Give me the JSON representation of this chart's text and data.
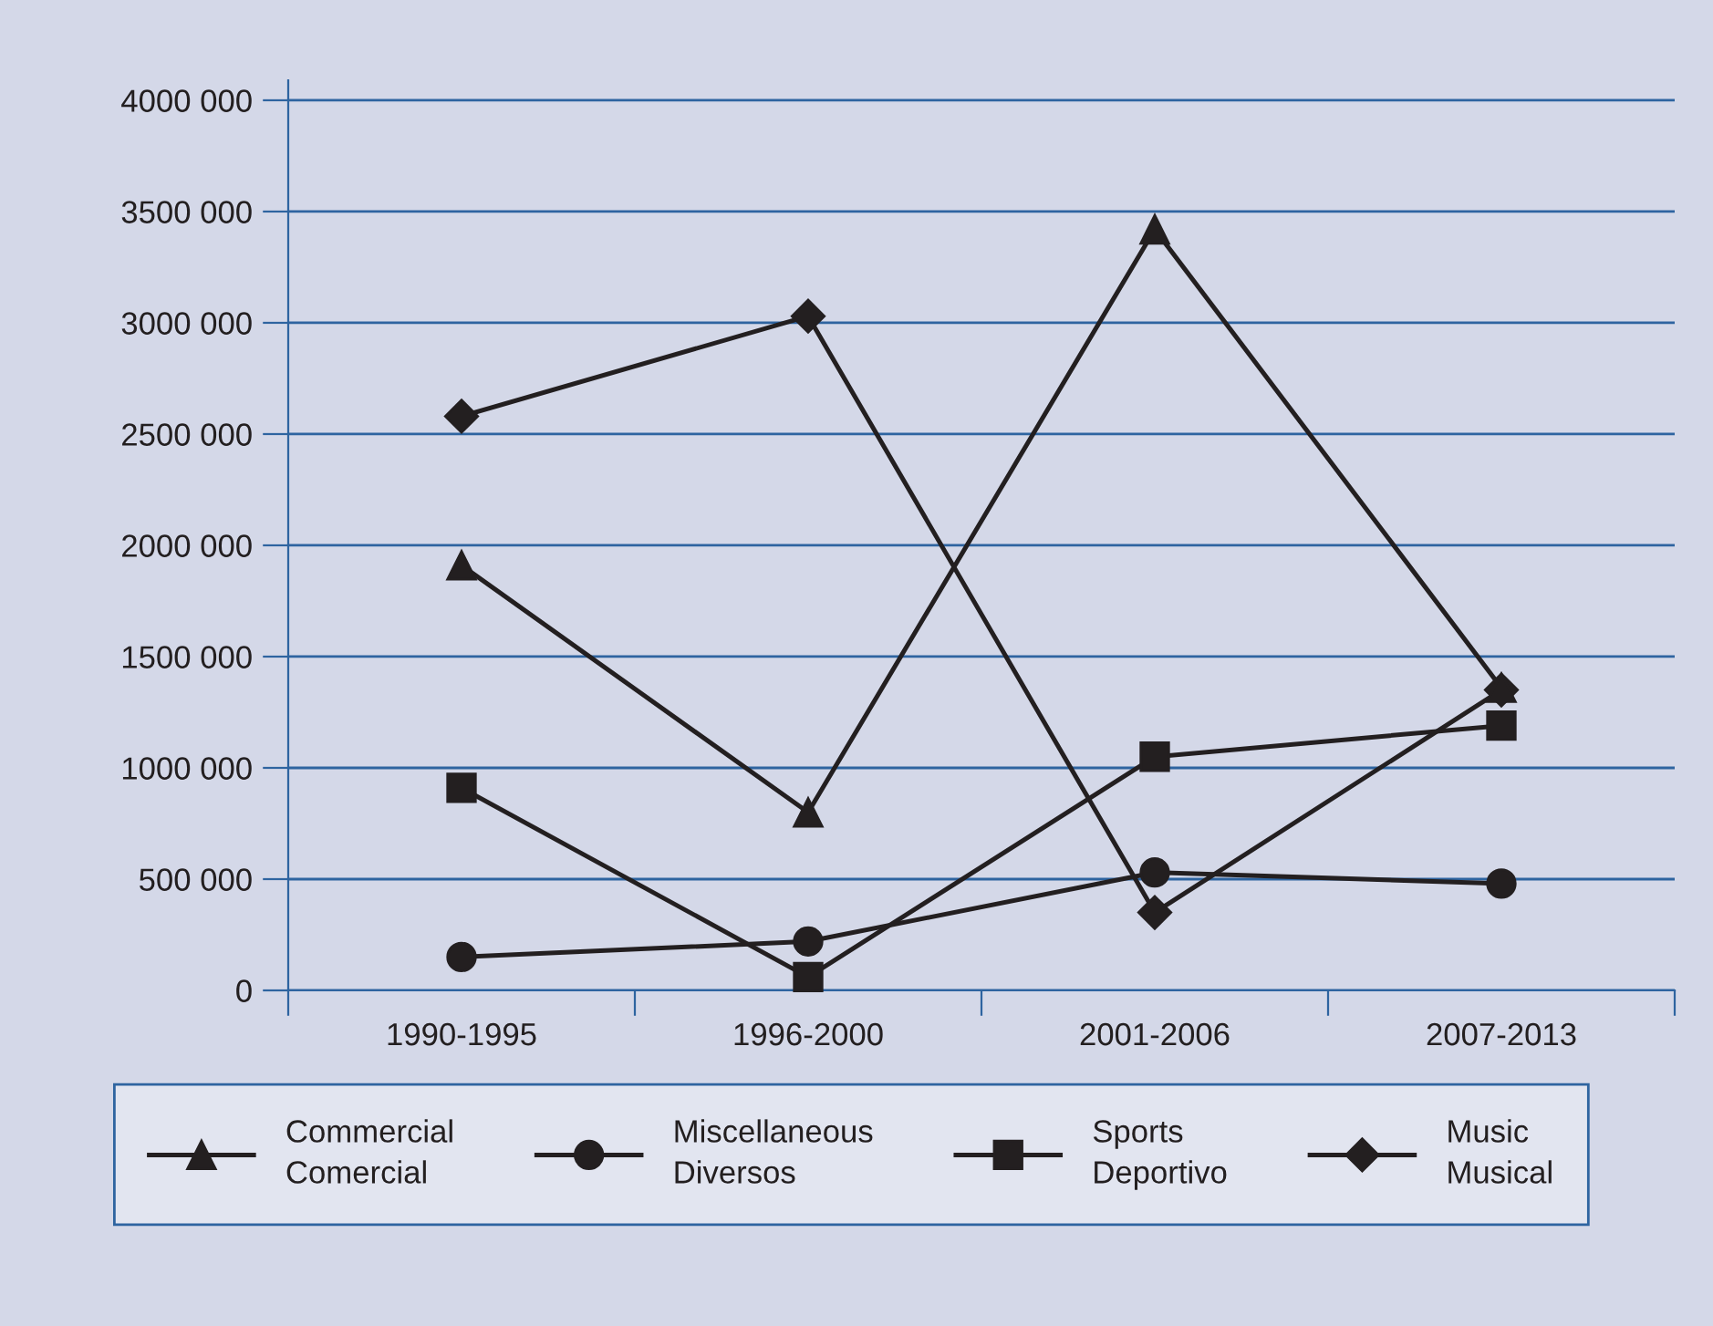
{
  "chart_data": {
    "type": "line",
    "categories": [
      "1990-1995",
      "1996-2000",
      "2001-2006",
      "2007-2013"
    ],
    "series": [
      {
        "name": "Commercial\nComercial",
        "color": "#231f20",
        "marker": "triangle",
        "values": [
          1910000,
          800000,
          3420000,
          1360000
        ]
      },
      {
        "name": "Miscellaneous\nDiversos",
        "color": "#231f20",
        "marker": "circle",
        "values": [
          150000,
          220000,
          530000,
          480000
        ]
      },
      {
        "name": "Sports\nDeportivo",
        "color": "#231f20",
        "marker": "square",
        "values": [
          910000,
          60000,
          1050000,
          1190000
        ]
      },
      {
        "name": "Music\nMusical",
        "color": "#231f20",
        "marker": "diamond",
        "values": [
          2580000,
          3030000,
          350000,
          1350000
        ]
      }
    ],
    "ylim": [
      0,
      4090000
    ],
    "yticks": [
      {
        "value": 0,
        "label": "0"
      },
      {
        "value": 500000,
        "label": "500 000"
      },
      {
        "value": 1000000,
        "label": "1000 000"
      },
      {
        "value": 1500000,
        "label": "1500 000"
      },
      {
        "value": 2000000,
        "label": "2000 000"
      },
      {
        "value": 2500000,
        "label": "2500 000"
      },
      {
        "value": 3000000,
        "label": "3000 000"
      },
      {
        "value": 3500000,
        "label": "3500 000"
      },
      {
        "value": 4000000,
        "label": "4000 000"
      }
    ],
    "grid": "y",
    "legend": "bottom",
    "line_style": "solid"
  }
}
